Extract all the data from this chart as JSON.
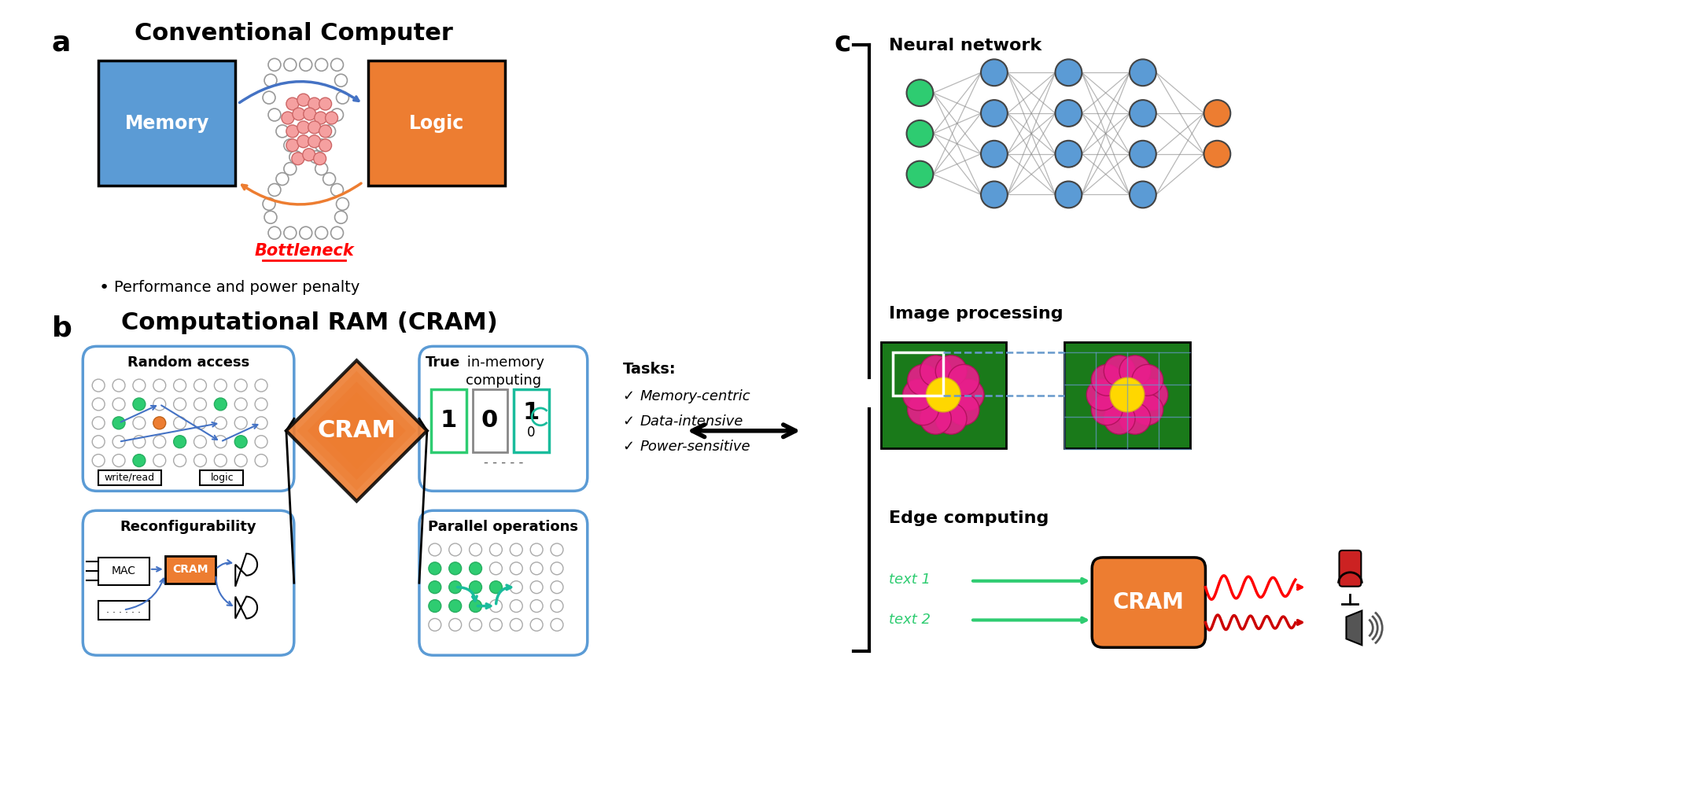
{
  "bg_color": "#ffffff",
  "panel_a": {
    "title": "Conventional Computer",
    "label": "a",
    "memory_color": "#5b9bd5",
    "logic_color": "#ed7d31",
    "memory_text": "Memory",
    "logic_text": "Logic",
    "bottleneck_text": "Bottleneck",
    "bullet_text": "Performance and power penalty"
  },
  "panel_b": {
    "title": "Computational RAM (CRAM)",
    "label": "b",
    "cram_color": "#ed7d31",
    "box_border": "#5b9bd5",
    "random_access_title": "Random access",
    "reconfig_title": "Reconfigurability",
    "true_mem_title": "True in-memory computing",
    "parallel_title": "Parallel operations",
    "tasks_title": "Tasks:",
    "tasks": [
      "Memory-centric",
      "Data-intensive",
      "Power-sensitive"
    ]
  },
  "panel_c": {
    "label": "c",
    "nn_title": "Neural network",
    "img_title": "Image processing",
    "edge_title": "Edge computing",
    "cram_color": "#ed7d31"
  }
}
